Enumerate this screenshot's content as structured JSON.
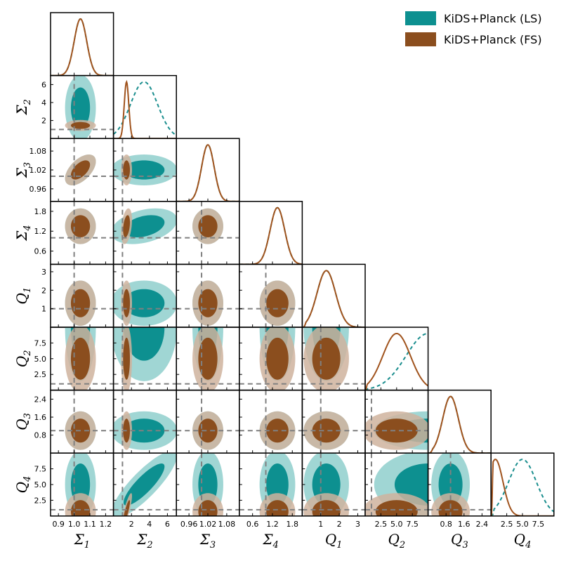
{
  "chart_data": {
    "type": "corner",
    "parameters": [
      {
        "label": "Σ",
        "sub": "1",
        "range": [
          0.85,
          1.25
        ],
        "ticks": [
          0.9,
          1.0,
          1.1,
          1.2
        ],
        "tick_labels": [
          "0.9",
          "1.0",
          "1.1",
          "1.2"
        ],
        "fiducial": 1.0
      },
      {
        "label": "Σ",
        "sub": "2",
        "range": [
          0,
          7
        ],
        "ticks": [
          2,
          4,
          6
        ],
        "tick_labels": [
          "2",
          "4",
          "6"
        ],
        "fiducial": 1.0
      },
      {
        "label": "Σ",
        "sub": "3",
        "range": [
          0.92,
          1.12
        ],
        "ticks": [
          0.96,
          1.02,
          1.08
        ],
        "tick_labels": [
          "0.96",
          "1.02",
          "1.08"
        ],
        "fiducial": 1.0
      },
      {
        "label": "Σ",
        "sub": "4",
        "range": [
          0.2,
          2.1
        ],
        "ticks": [
          0.6,
          1.2,
          1.8
        ],
        "tick_labels": [
          "0.6",
          "1.2",
          "1.8"
        ],
        "fiducial": 1.0
      },
      {
        "label": "Q",
        "sub": "1",
        "range": [
          0,
          3.4
        ],
        "ticks": [
          1,
          2,
          3
        ],
        "tick_labels": [
          "1",
          "2",
          "3"
        ],
        "fiducial": 1.0
      },
      {
        "label": "Q",
        "sub": "2",
        "range": [
          0,
          10
        ],
        "ticks": [
          2.5,
          5.0,
          7.5
        ],
        "tick_labels": [
          "2.5",
          "5.0",
          "7.5"
        ],
        "fiducial": 1.0
      },
      {
        "label": "Q",
        "sub": "3",
        "range": [
          0,
          2.8
        ],
        "ticks": [
          0.8,
          1.6,
          2.4
        ],
        "tick_labels": [
          "0.8",
          "1.6",
          "2.4"
        ],
        "fiducial": 1.0
      },
      {
        "label": "Q",
        "sub": "4",
        "range": [
          0,
          10
        ],
        "ticks": [
          2.5,
          5.0,
          7.5
        ],
        "tick_labels": [
          "2.5",
          "5.0",
          "7.5"
        ],
        "fiducial": 1.0
      }
    ],
    "datasets": [
      {
        "name": "KiDS+Planck (LS)",
        "fill_color": "#0d9090",
        "outer_color": "#8fcfcd",
        "line_color": "#1a8e8e",
        "line_style": "dashed",
        "means": [
          1.04,
          3.4,
          1.02,
          1.35,
          1.3,
          10.0,
          1.0,
          5.0
        ],
        "sigmas": [
          0.04,
          1.5,
          0.02,
          0.22,
          0.5,
          3.5,
          0.35,
          2.2
        ],
        "hard_lo": [
          null,
          null,
          null,
          null,
          0.2,
          0.3,
          0.2,
          0.5
        ],
        "hard_hi": [
          null,
          null,
          null,
          null,
          null,
          10.0,
          null,
          10.0
        ]
      },
      {
        "name": "KiDS+Planck (FS)",
        "fill_color": "#8b4e1e",
        "outer_color": "#cfb39e",
        "line_color": "#a0531d",
        "line_style": "solid",
        "means": [
          1.04,
          1.45,
          1.02,
          1.35,
          1.3,
          5.0,
          1.0,
          0.7
        ],
        "sigmas": [
          0.04,
          0.25,
          0.02,
          0.22,
          0.5,
          2.2,
          0.35,
          1.2
        ],
        "hard_lo": [
          null,
          null,
          null,
          null,
          0.2,
          0.3,
          0.2,
          0.3
        ],
        "hard_hi": [
          null,
          null,
          null,
          null,
          null,
          10.0,
          null,
          null
        ]
      }
    ],
    "correlations": [
      {
        "i": 2,
        "j": 0,
        "rho": 0.55
      },
      {
        "i": 3,
        "j": 1,
        "rho": 0.35
      },
      {
        "i": 7,
        "j": 1,
        "rho": 0.85
      }
    ],
    "legend": {
      "position": "top-right"
    }
  }
}
